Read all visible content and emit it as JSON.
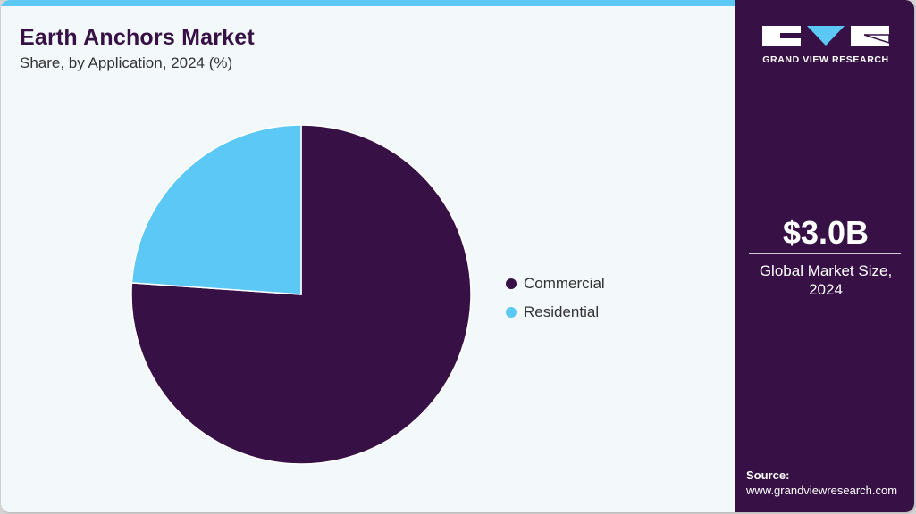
{
  "header": {
    "title": "Earth Anchors Market",
    "subtitle": "Share, by Application, 2024 (%)"
  },
  "legend": [
    {
      "label": "Commercial",
      "color": "#371145"
    },
    {
      "label": "Residential",
      "color": "#5bc8f5"
    }
  ],
  "sidebar": {
    "brand": "GRAND VIEW RESEARCH",
    "market_value": "$3.0B",
    "market_label_line1": "Global Market Size,",
    "market_label_line2": "2024",
    "source_title": "Source:",
    "source_url": "www.grandviewresearch.com"
  },
  "colors": {
    "accent": "#5bc8f5",
    "brand": "#371145",
    "background": "#f3f8fb"
  },
  "chart_data": {
    "type": "pie",
    "title": "Earth Anchors Market",
    "subtitle": "Share, by Application, 2024 (%)",
    "categories": [
      "Commercial",
      "Residential"
    ],
    "values": [
      76.1,
      23.9
    ],
    "colors": [
      "#371145",
      "#5bc8f5"
    ],
    "legend_position": "right",
    "start_angle": "12 o'clock, Residential drawn counter-clockwise"
  }
}
